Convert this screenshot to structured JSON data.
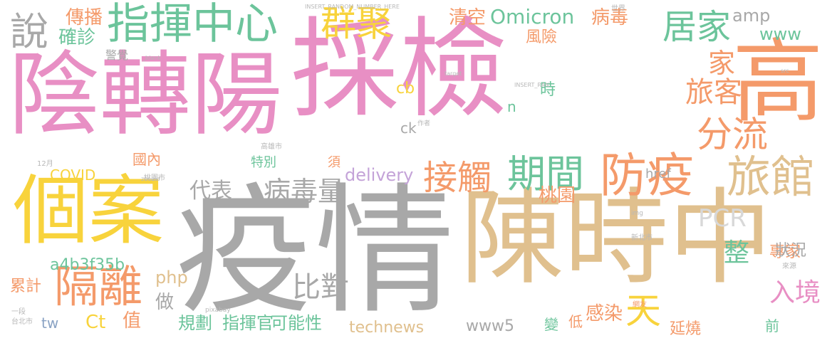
{
  "palette": {
    "pink": "#e88fc4",
    "gray": "#a8a8a8",
    "tan": "#e0c08e",
    "yellow": "#f8d33c",
    "green": "#6cc49b",
    "orange": "#f49a6a",
    "lavender": "#c4a3d8",
    "slate": "#8aa3c4"
  },
  "words": [
    "陰轉陽",
    "採檢",
    "疫情",
    "陳時中",
    "個案",
    "高",
    "指揮中心",
    "群聚",
    "居家",
    "說",
    "旅館",
    "防疫",
    "期間",
    "接觸",
    "隔離",
    "分流",
    "旅客",
    "天",
    "家",
    "入境",
    "比對",
    "病毒量",
    "代表",
    "PCR",
    "整",
    "確診",
    "傳播",
    "清空",
    "Omicron",
    "病毒",
    "amp",
    "www",
    "風險",
    "桃園",
    "專家",
    "狀況",
    "累計",
    "a4b3f35b",
    "php",
    "delivery",
    "technews",
    "www5",
    "規劃",
    "指揮官",
    "可能性",
    "感染",
    "延燒",
    "低",
    "變",
    "前",
    "國內",
    "COVID",
    "特別",
    "須",
    "href",
    "做",
    "值",
    "Ct",
    "tw",
    "cb",
    "ck",
    "n",
    "時",
    "警覺",
    "INSERT_RANDOM_NUMBER_HERE",
    "_blank",
    "INSERT_RAN",
    "target",
    "zoneid",
    "img",
    "pixabay",
    "作者",
    "台北市",
    "新北市",
    "高雄市",
    "桃園市",
    "世界",
    "一段",
    "來源",
    "src",
    "12月",
    "網友"
  ]
}
